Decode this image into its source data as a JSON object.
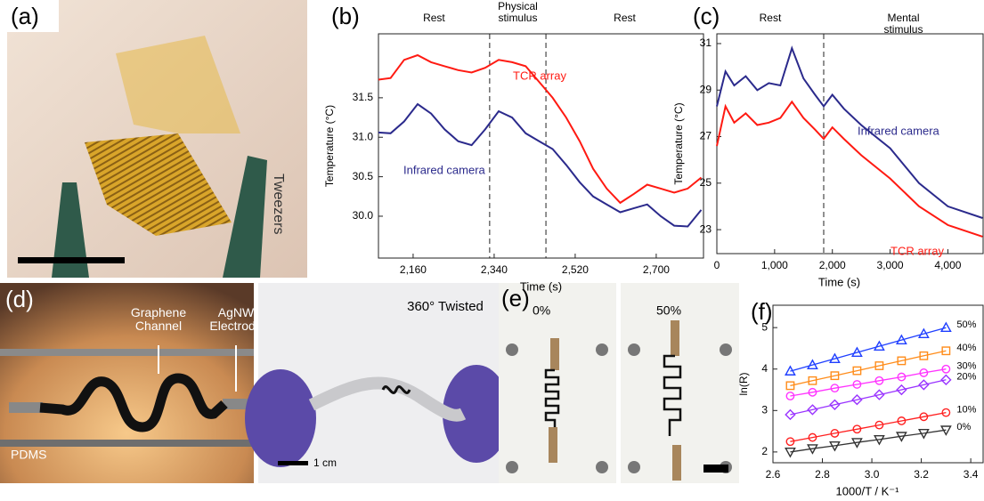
{
  "chart_data": [
    {
      "type": "line",
      "panel_label": "(b)",
      "xlabel": "Time (s)",
      "ylabel": "Temperature (°C)",
      "region_labels": [
        "Rest",
        "Physical stimulus",
        "Rest"
      ],
      "events": [
        2330,
        2455
      ],
      "x": [
        2083,
        2110,
        2140,
        2170,
        2200,
        2230,
        2260,
        2290,
        2320,
        2350,
        2380,
        2410,
        2440,
        2470,
        2500,
        2530,
        2560,
        2590,
        2620,
        2650,
        2680,
        2710,
        2740,
        2770,
        2800
      ],
      "series": [
        {
          "name": "TCR array",
          "color": "#ff1a12",
          "values": [
            31.73,
            31.75,
            31.98,
            32.04,
            31.95,
            31.9,
            31.85,
            31.82,
            31.88,
            31.98,
            31.95,
            31.9,
            31.7,
            31.5,
            31.25,
            30.95,
            30.6,
            30.35,
            30.17,
            30.28,
            30.4,
            30.35,
            30.3,
            30.35,
            30.49
          ]
        },
        {
          "name": "Infrared camera",
          "color": "#2b2a8c",
          "values": [
            31.06,
            31.05,
            31.2,
            31.42,
            31.3,
            31.1,
            30.95,
            30.9,
            31.1,
            31.33,
            31.25,
            31.05,
            30.95,
            30.85,
            30.65,
            30.43,
            30.25,
            30.15,
            30.05,
            30.1,
            30.15,
            30.0,
            29.88,
            29.87,
            30.08
          ]
        }
      ],
      "xlim": [
        2083,
        2805
      ],
      "ylim": [
        29.47,
        32.31
      ],
      "xticks": [
        {
          "value": 2160,
          "label": "2,160"
        },
        {
          "value": 2340,
          "label": "2,340"
        },
        {
          "value": 2520,
          "label": "2,520"
        },
        {
          "value": 2700,
          "label": "2,700"
        }
      ],
      "yticks": [
        {
          "value": 30,
          "label": "30.0"
        },
        30.5,
        {
          "value": 31,
          "label": "31.0"
        },
        31.5
      ]
    },
    {
      "type": "line",
      "panel_label": "(c)",
      "xlabel": "Time (s)",
      "ylabel": "Temperature (°C)",
      "region_labels": [
        "Rest",
        "Mental stimulus"
      ],
      "events": [
        1850
      ],
      "x": [
        0,
        150,
        300,
        500,
        700,
        900,
        1100,
        1300,
        1500,
        1700,
        1850,
        2000,
        2200,
        2500,
        3000,
        3500,
        4000,
        4600
      ],
      "series": [
        {
          "name": "Infrared camera",
          "color": "#2b2a8c",
          "values": [
            28.3,
            29.8,
            29.2,
            29.6,
            29.0,
            29.3,
            29.2,
            30.8,
            29.5,
            28.8,
            28.3,
            28.8,
            28.2,
            27.5,
            26.5,
            25.0,
            24.0,
            23.5
          ]
        },
        {
          "name": "TCR array",
          "color": "#ff1a12",
          "values": [
            26.6,
            28.3,
            27.6,
            28.0,
            27.5,
            27.6,
            27.8,
            28.5,
            27.8,
            27.3,
            26.9,
            27.4,
            26.9,
            26.2,
            25.2,
            24.0,
            23.2,
            22.7
          ]
        }
      ],
      "xlim": [
        0,
        4610
      ],
      "ylim": [
        21.97,
        31.42
      ],
      "xticks": [
        0,
        {
          "value": 1000,
          "label": "1,000"
        },
        {
          "value": 2000,
          "label": "2,000"
        },
        {
          "value": 3000,
          "label": "3,000"
        },
        {
          "value": 4000,
          "label": "4,000"
        }
      ],
      "yticks": [
        23,
        25,
        27,
        29,
        31
      ]
    },
    {
      "type": "scatter",
      "panel_label": "(f)",
      "xlabel": "1000/T / K⁻¹",
      "ylabel": "ln(R)",
      "x": [
        2.67,
        2.76,
        2.85,
        2.94,
        3.03,
        3.12,
        3.21,
        3.3
      ],
      "series": [
        {
          "name": "50%",
          "color": "#1f3fff",
          "marker": "triangle-up",
          "values": [
            3.95,
            4.1,
            4.25,
            4.4,
            4.55,
            4.7,
            4.85,
            5.0
          ]
        },
        {
          "name": "40%",
          "color": "#ff8c1a",
          "marker": "square",
          "values": [
            3.6,
            3.72,
            3.84,
            3.96,
            4.08,
            4.2,
            4.32,
            4.44
          ]
        },
        {
          "name": "30%",
          "color": "#ff33ff",
          "marker": "circle",
          "values": [
            3.35,
            3.44,
            3.54,
            3.63,
            3.72,
            3.81,
            3.91,
            4.0
          ]
        },
        {
          "name": "20%",
          "color": "#9933ff",
          "marker": "diamond",
          "values": [
            2.9,
            3.02,
            3.14,
            3.26,
            3.38,
            3.5,
            3.62,
            3.74
          ]
        },
        {
          "name": "10%",
          "color": "#ff2020",
          "marker": "circle",
          "values": [
            2.25,
            2.35,
            2.45,
            2.55,
            2.65,
            2.75,
            2.85,
            2.95
          ]
        },
        {
          "name": "0%",
          "color": "#333333",
          "marker": "triangle-down",
          "values": [
            2.0,
            2.08,
            2.15,
            2.23,
            2.3,
            2.38,
            2.45,
            2.53
          ]
        }
      ],
      "xlim": [
        2.6,
        3.45
      ],
      "ylim": [
        1.74,
        5.54
      ],
      "xticks": [
        2.6,
        2.8,
        {
          "value": 3,
          "label": "3.0"
        },
        3.2,
        3.4
      ],
      "yticks": [
        2,
        3,
        4,
        5
      ]
    }
  ],
  "panels": {
    "a": {
      "label": "(a)",
      "tweezers": "Tweezers"
    },
    "d": {
      "label": "(d)",
      "channel": "Graphene Channel",
      "electrode": "AgNW Electrode",
      "substrate": "PDMS",
      "twisted": "360° Twisted",
      "scale": "1 cm"
    },
    "e": {
      "label": "(e)",
      "strain_left": "0%",
      "strain_right": "50%"
    }
  }
}
